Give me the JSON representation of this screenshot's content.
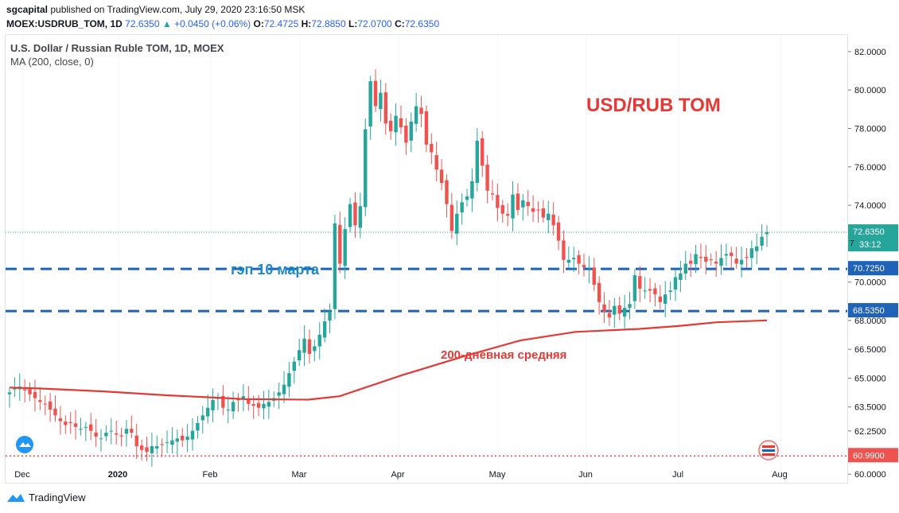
{
  "header": {
    "publisher": "sgcapital",
    "published_text": " published on TradingView.com, July 29, 2020 23:16:50 MSK",
    "symbol": "MOEX:USDRUB_TOM, 1D",
    "price": "72.6350",
    "change": "+0.0450 (+0.06%)",
    "o_label": "O:",
    "o": "72.4725",
    "h_label": "H:",
    "h": "72.8850",
    "l_label": "L:",
    "l": "72.0700",
    "c_label": "C:",
    "c": "72.6350"
  },
  "legend": {
    "title": "U.S. Dollar / Russian Ruble TOM, 1D, MOEX",
    "ma": "MA (200, close, 0)"
  },
  "footer": {
    "brand": "TradingView"
  },
  "colors": {
    "up": "#26a69a",
    "down": "#ef5350",
    "ma": "#e53935",
    "gap_line": "#1e63b8",
    "blue_text": "#1e88c8",
    "red_text": "#e53935",
    "last_price": "#26a69a"
  },
  "chart_data": {
    "type": "candlestick",
    "title": "USD/RUB TOM",
    "ylim": [
      59.8,
      82.7
    ],
    "y_ticks": [
      "82.0000",
      "80.0000",
      "78.0000",
      "76.0000",
      "74.0000",
      "70.0000",
      "68.0000",
      "66.5000",
      "65.0000",
      "63.5000",
      "62.2500",
      "60.0000"
    ],
    "x_ticks": [
      "Dec",
      "2020",
      "Feb",
      "Mar",
      "Apr",
      "May",
      "Jun",
      "Jul",
      "Aug"
    ],
    "annotations": {
      "gap_label": "гэп 10 марта",
      "ma_label": "200-дневная средняя"
    },
    "levels": [
      {
        "value": 70.725,
        "label": "70.7250",
        "style": "dashed"
      },
      {
        "value": 68.535,
        "label": "68.5350",
        "style": "dashed"
      },
      {
        "value": 60.99,
        "label": "60.9900",
        "style": "dotted"
      }
    ],
    "last_price": {
      "value": 72.635,
      "label": "72.6350",
      "countdown": "33:12",
      "partial_tick": "7"
    },
    "closes": [
      64.3,
      64.5,
      64.6,
      64.4,
      64.2,
      64.0,
      63.8,
      63.7,
      63.4,
      63.1,
      62.8,
      62.6,
      62.7,
      62.5,
      62.4,
      62.5,
      62.3,
      62.0,
      61.9,
      62.2,
      62.3,
      62.1,
      62.0,
      62.4,
      62.2,
      61.5,
      61.3,
      61.2,
      61.5,
      61.5,
      61.6,
      61.7,
      61.8,
      61.9,
      61.8,
      62.0,
      62.3,
      62.7,
      63.1,
      63.5,
      63.9,
      64.0,
      63.5,
      63.4,
      63.8,
      63.9,
      64.1,
      63.7,
      63.6,
      63.5,
      63.7,
      63.8,
      64.0,
      64.3,
      64.7,
      65.3,
      65.9,
      66.5,
      67.1,
      66.3,
      66.7,
      67.3,
      68.0,
      68.5,
      73.1,
      71.0,
      72.8,
      74.1,
      73.0,
      74.0,
      78.0,
      80.5,
      79.2,
      79.9,
      78.3,
      77.9,
      78.7,
      78.1,
      77.3,
      78.4,
      79.2,
      78.8,
      77.2,
      76.8,
      75.9,
      75.2,
      74.1,
      72.7,
      73.6,
      74.2,
      74.5,
      75.3,
      77.4,
      76.1,
      74.8,
      74.6,
      73.9,
      73.6,
      73.5,
      74.6,
      73.8,
      74.3,
      74.0,
      73.7,
      73.8,
      73.4,
      73.6,
      73.0,
      72.2,
      71.2,
      71.2,
      71.3,
      71.0,
      70.8,
      70.7,
      69.9,
      69.0,
      68.5,
      68.2,
      68.8,
      68.4,
      68.7,
      68.9,
      70.4,
      69.7,
      69.6,
      69.6,
      69.4,
      69.0,
      69.4,
      69.6,
      70.3,
      70.5,
      71.0,
      71.0,
      71.5,
      71.3,
      71.1,
      71.2,
      71.0,
      71.3,
      71.5,
      71.4,
      71.0,
      71.2,
      71.3,
      71.8,
      71.9,
      72.4,
      72.635
    ],
    "ma200": [
      [
        0,
        64.55
      ],
      [
        40,
        64.5
      ],
      [
        120,
        64.35
      ],
      [
        200,
        64.15
      ],
      [
        300,
        63.95
      ],
      [
        380,
        63.92
      ],
      [
        420,
        64.1
      ],
      [
        500,
        65.2
      ],
      [
        580,
        66.2
      ],
      [
        650,
        67.0
      ],
      [
        720,
        67.45
      ],
      [
        800,
        67.6
      ],
      [
        850,
        67.75
      ],
      [
        900,
        67.95
      ],
      [
        964,
        68.05
      ]
    ]
  }
}
